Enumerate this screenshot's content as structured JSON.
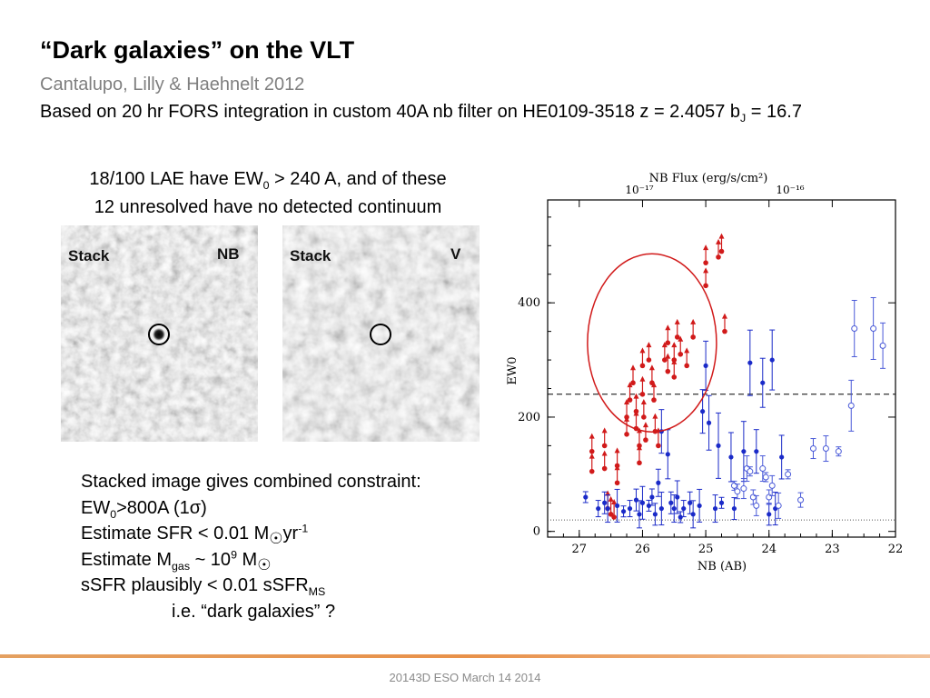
{
  "slide": {
    "title": "“Dark galaxies” on the VLT",
    "authors": "Cantalupo, Lilly & Haehnelt 2012",
    "basis_main": "Based on 20 hr FORS integration in custom 40A nb filter on HE0109-3518 z = 2.4057 b",
    "basis_sub": "J",
    "basis_tail": " = 16.7",
    "lae_line1_a": "18/100 LAE have EW",
    "lae_line1_sub": "0",
    "lae_line1_b": " > 240 A, and  of these",
    "lae_line2": "12 unresolved have no detected continuum",
    "constraints": {
      "l1": "Stacked image gives combined constraint:",
      "l2_a": "EW",
      "l2_sub": "0",
      "l2_b": ">800A (1σ)",
      "l3_a": "Estimate SFR < 0.01 M",
      "l3_sun": "☉",
      "l3_b": "yr",
      "l3_sup": "-1",
      "l4_a": "Estimate M",
      "l4_sub": "gas",
      "l4_b": " ~ 10",
      "l4_sup": "9",
      "l4_c": " M",
      "l4_sun": "☉",
      "l5_a": "sSFR plausibly < 0.01 sSFR",
      "l5_sub": "MS",
      "l6": "i.e. “dark galaxies” ?"
    },
    "footer": "20143D ESO March 14 2014"
  },
  "stamps": [
    {
      "label_left": "Stack",
      "label_right": "NB"
    },
    {
      "label_left": "Stack",
      "label_right": "V"
    }
  ],
  "chart_data": {
    "type": "scatter",
    "xlabel": "NB (AB)",
    "ylabel": "EW0",
    "top_axis_label": "NB Flux (erg/s/cm²)",
    "top_ticks": [
      "10⁻¹⁷",
      "10⁻¹⁶"
    ],
    "xlim": [
      27.5,
      22
    ],
    "ylim": [
      -10,
      580
    ],
    "x_ticks": [
      27,
      26,
      25,
      24,
      23,
      22
    ],
    "y_ticks": [
      0,
      200,
      400
    ],
    "threshold_ew": 240,
    "colors": {
      "red": "#d11a1a",
      "blue": "#1a2ac8",
      "lightblue": "#4a5ad8",
      "circle": "#d11a1a"
    },
    "series": [
      {
        "style": "red lower limits",
        "points": [
          [
            26.8,
            140
          ],
          [
            26.8,
            105
          ],
          [
            26.6,
            150
          ],
          [
            26.6,
            110
          ],
          [
            26.4,
            115
          ],
          [
            26.4,
            85
          ],
          [
            26.25,
            200
          ],
          [
            26.25,
            170
          ],
          [
            26.2,
            230
          ],
          [
            26.15,
            260
          ],
          [
            26.1,
            210
          ],
          [
            26.1,
            180
          ],
          [
            26.05,
            150
          ],
          [
            26.05,
            120
          ],
          [
            26.0,
            290
          ],
          [
            26.0,
            240
          ],
          [
            25.98,
            200
          ],
          [
            25.95,
            160
          ],
          [
            25.9,
            300
          ],
          [
            25.85,
            260
          ],
          [
            25.82,
            230
          ],
          [
            25.8,
            175
          ],
          [
            25.75,
            150
          ],
          [
            25.65,
            300
          ],
          [
            25.6,
            330
          ],
          [
            25.6,
            280
          ],
          [
            25.5,
            300
          ],
          [
            25.5,
            270
          ],
          [
            25.45,
            340
          ],
          [
            25.4,
            310
          ],
          [
            25.3,
            290
          ],
          [
            25.2,
            340
          ],
          [
            25.0,
            430
          ],
          [
            25.0,
            470
          ],
          [
            24.8,
            480
          ],
          [
            24.75,
            490
          ],
          [
            24.7,
            350
          ],
          [
            26.55,
            40
          ],
          [
            26.5,
            30
          ],
          [
            26.45,
            25
          ]
        ]
      },
      {
        "style": "blue filled with error bars",
        "points": [
          [
            26.9,
            60
          ],
          [
            26.7,
            40
          ],
          [
            26.6,
            50
          ],
          [
            26.55,
            40
          ],
          [
            26.4,
            45
          ],
          [
            26.3,
            35
          ],
          [
            26.2,
            40
          ],
          [
            26.1,
            55
          ],
          [
            26.05,
            30
          ],
          [
            26.0,
            50
          ],
          [
            25.9,
            45
          ],
          [
            25.85,
            60
          ],
          [
            25.8,
            30
          ],
          [
            25.75,
            85
          ],
          [
            25.7,
            40
          ],
          [
            25.7,
            175
          ],
          [
            25.6,
            135
          ],
          [
            25.55,
            50
          ],
          [
            25.5,
            40
          ],
          [
            25.45,
            60
          ],
          [
            25.4,
            25
          ],
          [
            25.35,
            40
          ],
          [
            25.25,
            50
          ],
          [
            25.2,
            30
          ],
          [
            25.1,
            45
          ],
          [
            25.05,
            210
          ],
          [
            25.0,
            290
          ],
          [
            24.95,
            190
          ],
          [
            24.85,
            40
          ],
          [
            24.8,
            150
          ],
          [
            24.75,
            50
          ],
          [
            24.6,
            130
          ],
          [
            24.55,
            40
          ],
          [
            24.4,
            140
          ],
          [
            24.3,
            295
          ],
          [
            24.2,
            140
          ],
          [
            24.1,
            260
          ],
          [
            24.0,
            30
          ],
          [
            23.95,
            300
          ],
          [
            23.9,
            40
          ],
          [
            23.8,
            130
          ]
        ]
      },
      {
        "style": "blue open with error bars",
        "points": [
          [
            24.55,
            80
          ],
          [
            24.5,
            70
          ],
          [
            24.4,
            75
          ],
          [
            24.35,
            110
          ],
          [
            24.3,
            105
          ],
          [
            24.25,
            60
          ],
          [
            24.2,
            45
          ],
          [
            24.1,
            110
          ],
          [
            24.05,
            95
          ],
          [
            24.0,
            60
          ],
          [
            23.95,
            80
          ],
          [
            23.85,
            45
          ],
          [
            23.7,
            100
          ],
          [
            23.5,
            55
          ],
          [
            23.3,
            145
          ],
          [
            23.1,
            145
          ],
          [
            22.9,
            140
          ],
          [
            22.7,
            220
          ],
          [
            22.65,
            355
          ],
          [
            22.35,
            355
          ],
          [
            22.2,
            325
          ]
        ]
      }
    ],
    "annotation": "red ellipse highlighting high-EW candidates"
  }
}
